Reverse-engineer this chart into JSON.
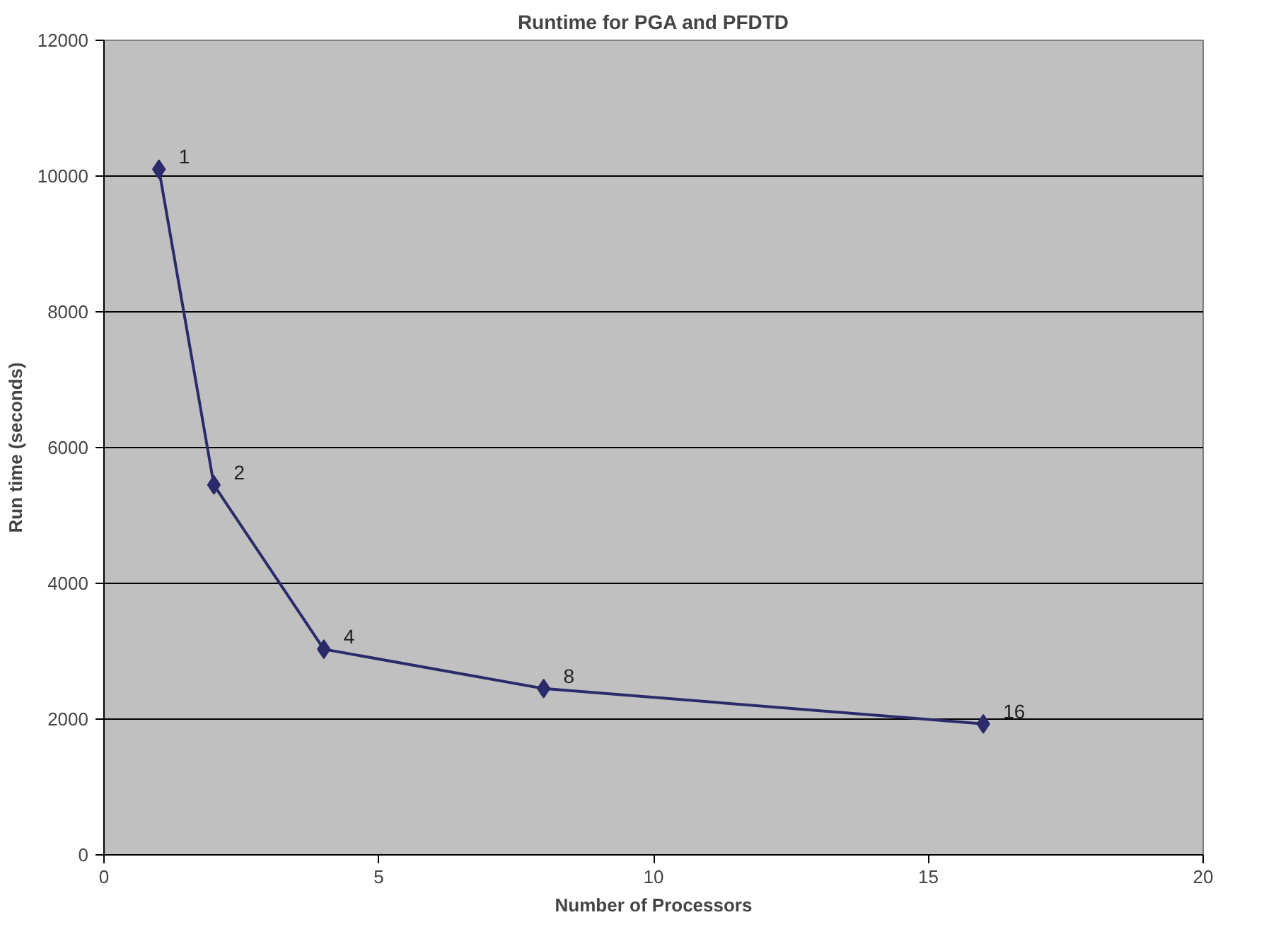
{
  "chart_data": {
    "type": "line",
    "title": "Runtime for PGA and PFDTD",
    "xlabel": "Number of Processors",
    "ylabel": "Run time (seconds)",
    "x": [
      1,
      2,
      4,
      8,
      16
    ],
    "series": [
      {
        "color": "#2b2b6b",
        "values": [
          10100,
          5450,
          3030,
          2450,
          1930
        ]
      }
    ],
    "xlim": [
      0,
      20
    ],
    "xticks": [
      0,
      5,
      10,
      15,
      20
    ],
    "ylim": [
      0,
      12000
    ],
    "yticks": [
      0,
      2000,
      4000,
      6000,
      8000,
      10000,
      12000
    ],
    "grid": "y",
    "marker": "diamond",
    "line_style": "solid",
    "annotations": [
      {
        "text": "1",
        "x": 1,
        "y": 10100
      },
      {
        "text": "2",
        "x": 2,
        "y": 5450
      },
      {
        "text": "4",
        "x": 4,
        "y": 3030
      },
      {
        "text": "8",
        "x": 8,
        "y": 2450
      },
      {
        "text": "16",
        "x": 16,
        "y": 1930
      }
    ]
  }
}
